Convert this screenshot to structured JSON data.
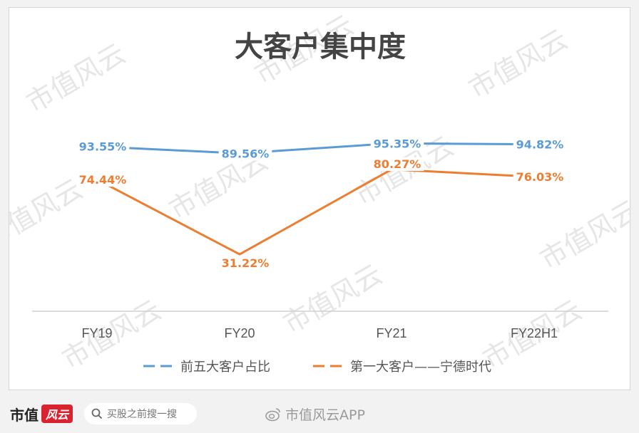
{
  "chart_data": {
    "type": "line",
    "title": "大客户集中度",
    "categories": [
      "FY19",
      "FY20",
      "FY21",
      "FY22H1"
    ],
    "series": [
      {
        "name": "前五大客户占比",
        "values": [
          93.55,
          89.56,
          95.35,
          94.82
        ],
        "labels": [
          "93.55%",
          "89.56%",
          "95.35%",
          "94.82%"
        ],
        "color": "#5b9bd5"
      },
      {
        "name": "第一大客户——宁德时代",
        "values": [
          74.44,
          31.22,
          80.27,
          76.03
        ],
        "labels": [
          "74.44%",
          "31.22%",
          "80.27%",
          "76.03%"
        ],
        "color": "#ed7d31"
      }
    ],
    "grid": false,
    "legend": "bottom"
  },
  "watermark": "市值风云",
  "footer": {
    "brand": "市值",
    "brand_mark": "风云",
    "search_placeholder": "买股之前搜一搜",
    "weibo": "市值风云APP"
  }
}
